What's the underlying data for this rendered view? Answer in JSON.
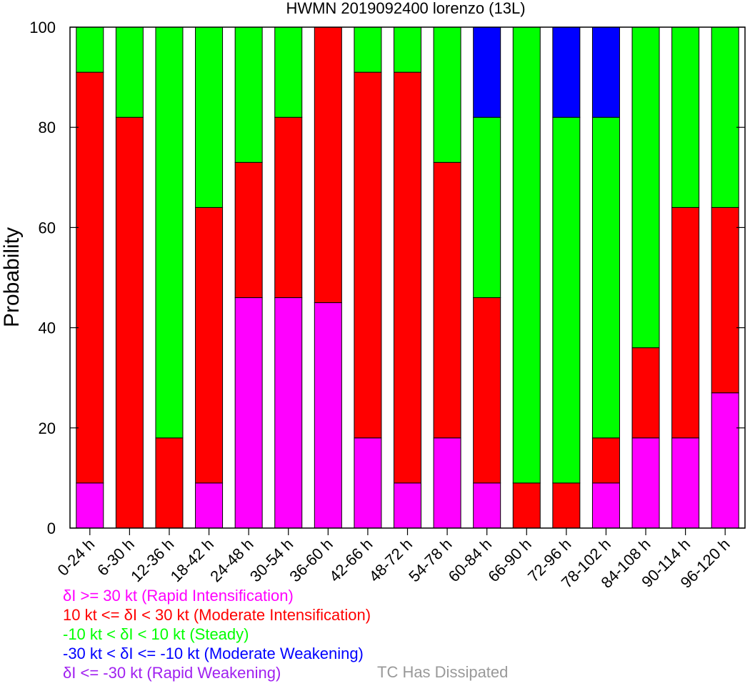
{
  "chart_data": {
    "type": "bar",
    "stacked": true,
    "title": "HWMN 2019092400 lorenzo (13L)",
    "ylabel": "Probability",
    "xlabel": "",
    "ylim": [
      0,
      100
    ],
    "yticks": [
      0,
      20,
      40,
      60,
      80,
      100
    ],
    "categories": [
      "0-24 h",
      "6-30 h",
      "12-36 h",
      "18-42 h",
      "24-48 h",
      "30-54 h",
      "36-60 h",
      "42-66 h",
      "48-72 h",
      "54-78 h",
      "60-84 h",
      "66-90 h",
      "72-96 h",
      "78-102 h",
      "84-108 h",
      "90-114 h",
      "96-120 h"
    ],
    "series": [
      {
        "name": "δI >= 30 kt (Rapid Intensification)",
        "color": "#ff00ff",
        "values": [
          9,
          0,
          0,
          9,
          46,
          46,
          45,
          18,
          9,
          18,
          9,
          0,
          0,
          9,
          18,
          18,
          27
        ]
      },
      {
        "name": "10 kt <= δI < 30 kt (Moderate Intensification)",
        "color": "#ff0000",
        "values": [
          82,
          82,
          18,
          55,
          27,
          36,
          55,
          73,
          82,
          55,
          37,
          9,
          9,
          9,
          18,
          46,
          37
        ]
      },
      {
        "name": "-10 kt < δI < 10 kt (Steady)",
        "color": "#00ff00",
        "values": [
          9,
          18,
          82,
          36,
          27,
          18,
          0,
          9,
          9,
          27,
          36,
          91,
          73,
          64,
          64,
          36,
          36
        ]
      },
      {
        "name": "-30 kt < δI <= -10 kt (Moderate Weakening)",
        "color": "#0000ff",
        "values": [
          0,
          0,
          0,
          0,
          0,
          0,
          0,
          0,
          0,
          0,
          18,
          0,
          18,
          18,
          0,
          0,
          0
        ]
      },
      {
        "name": "δI <= -30 kt (Rapid Weakening)",
        "color": "#a020f0",
        "values": [
          0,
          0,
          0,
          0,
          0,
          0,
          0,
          0,
          0,
          0,
          0,
          0,
          0,
          0,
          0,
          0,
          0
        ]
      }
    ],
    "extra_legend": {
      "label": "TC Has Dissipated",
      "color": "#999999"
    },
    "grid": false
  }
}
